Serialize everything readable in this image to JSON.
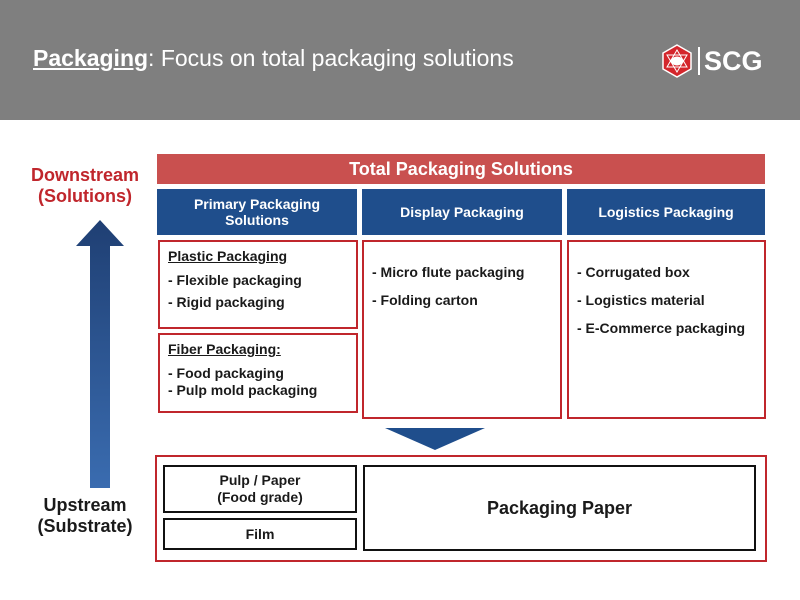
{
  "header": {
    "title_underlined": "Packaging",
    "title_rest": ":  Focus on total packaging solutions",
    "logo_text": "SCG",
    "colors": {
      "background": "#7f7f7f",
      "logo_red": "#d4262c"
    }
  },
  "left": {
    "downstream": "Downstream",
    "downstream_sub": "(Solutions)",
    "upstream": "Upstream",
    "upstream_sub": "(Substrate)"
  },
  "banner": "Total Packaging Solutions",
  "columns": [
    {
      "header_line1": "Primary Packaging",
      "header_line2": "Solutions"
    },
    {
      "header": "Display Packaging",
      "items": [
        "- Micro flute packaging",
        "- Folding carton"
      ]
    },
    {
      "header": "Logistics Packaging",
      "items": [
        "- Corrugated box",
        "- Logistics material",
        "- E-Commerce packaging"
      ]
    }
  ],
  "plastic": {
    "title": "Plastic Packaging",
    "items": [
      "- Flexible packaging",
      "- Rigid packaging"
    ]
  },
  "fiber": {
    "title": "Fiber Packaging:",
    "items": [
      "- Food packaging",
      "- Pulp mold packaging"
    ]
  },
  "substrate": {
    "pulp_line1": "Pulp / Paper",
    "pulp_line2": "(Food grade)",
    "film": "Film",
    "paper": "Packaging Paper"
  },
  "colors": {
    "red_banner": "#c9504f",
    "blue_header": "#1f4e8c",
    "border_red": "#c0262c",
    "arrow_blue": "#1f3f73"
  }
}
